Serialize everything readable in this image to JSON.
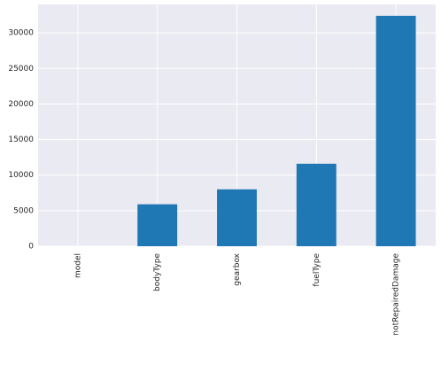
{
  "chart_data": {
    "type": "bar",
    "categories": [
      "model",
      "bodyType",
      "gearbox",
      "fuelType",
      "notRepairedDamage"
    ],
    "values": [
      0,
      5900,
      8000,
      11600,
      32400
    ],
    "color": "#1f77b4",
    "ylim": [
      0,
      34000
    ],
    "yticks": [
      0,
      5000,
      10000,
      15000,
      20000,
      25000,
      30000
    ],
    "grid": true
  }
}
